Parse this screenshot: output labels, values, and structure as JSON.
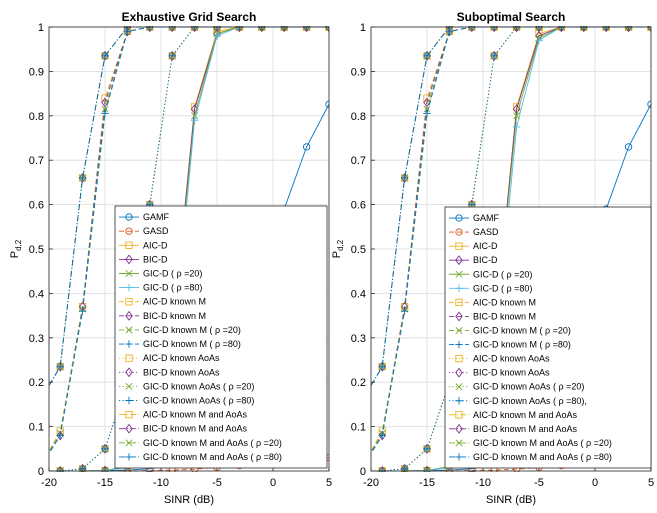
{
  "chart_data": [
    {
      "type": "line",
      "title": "Exhaustive Grid Search",
      "xlabel": "SINR (dB)",
      "ylabel": "P",
      "ylabel_sub": "d,2",
      "xlim": [
        -20,
        5
      ],
      "ylim": [
        0,
        1
      ],
      "xticks": [
        -20,
        -15,
        -10,
        -5,
        0,
        5
      ],
      "yticks": [
        0,
        0.1,
        0.2,
        0.3,
        0.4,
        0.5,
        0.6,
        0.7,
        0.8,
        0.9,
        1
      ],
      "grid": true,
      "legend_position": "inside-lower-right",
      "x": [
        -21,
        -19,
        -17,
        -15,
        -13,
        -11,
        -9,
        -7,
        -5,
        -3,
        -1,
        1,
        3,
        5
      ],
      "series": [
        {
          "name": "GAMF",
          "color": "#0072BD",
          "line": "solid",
          "marker": "o",
          "values": [
            0,
            0,
            0,
            0.001,
            0.002,
            0.005,
            0.015,
            0.05,
            0.14,
            0.3,
            0.48,
            0.59,
            0.73,
            0.826
          ]
        },
        {
          "name": "GASD",
          "color": "#D95319",
          "line": "dashed",
          "marker": "o",
          "values": [
            0,
            0,
            0,
            0,
            0,
            0.001,
            0.002,
            0.004,
            0.008,
            0.012,
            0.016,
            0.018,
            0.022,
            0.03
          ]
        },
        {
          "name": "AIC-D",
          "color": "#EDB120",
          "line": "solid",
          "marker": "s",
          "values": [
            0,
            0,
            0,
            0.001,
            0.01,
            0.06,
            0.3,
            0.82,
            0.99,
            1,
            1,
            1,
            1,
            1
          ]
        },
        {
          "name": "BIC-D",
          "color": "#7E2F8E",
          "line": "solid",
          "marker": "d",
          "values": [
            0,
            0,
            0,
            0.001,
            0.01,
            0.06,
            0.3,
            0.815,
            0.985,
            1,
            1,
            1,
            1,
            1
          ]
        },
        {
          "name": "GIC-D ( ρ =20)",
          "color": "#77AC30",
          "line": "solid",
          "marker": "x",
          "values": [
            0,
            0,
            0,
            0.001,
            0.01,
            0.06,
            0.29,
            0.8,
            0.985,
            1,
            1,
            1,
            1,
            1
          ]
        },
        {
          "name": "GIC-D ( ρ =80)",
          "color": "#4DBEEE",
          "line": "solid",
          "marker": "+",
          "values": [
            0,
            0,
            0,
            0.001,
            0.008,
            0.05,
            0.25,
            0.79,
            0.98,
            1,
            1,
            1,
            1,
            1
          ]
        },
        {
          "name": "AIC-D known M",
          "color": "#EDB120",
          "line": "dashed",
          "marker": "s",
          "values": [
            0,
            0.09,
            0.37,
            0.84,
            0.99,
            1,
            1,
            1,
            1,
            1,
            1,
            1,
            1,
            1
          ]
        },
        {
          "name": "BIC-D known M",
          "color": "#7E2F8E",
          "line": "dashed",
          "marker": "d",
          "values": [
            0,
            0.08,
            0.37,
            0.83,
            0.99,
            1,
            1,
            1,
            1,
            1,
            1,
            1,
            1,
            1
          ]
        },
        {
          "name": "GIC-D known M ( ρ =20)",
          "color": "#77AC30",
          "line": "dashed",
          "marker": "x",
          "values": [
            0,
            0.085,
            0.365,
            0.815,
            0.99,
            1,
            1,
            1,
            1,
            1,
            1,
            1,
            1,
            1
          ]
        },
        {
          "name": "GIC-D known M ( ρ =80)",
          "color": "#0072BD",
          "line": "dashed",
          "marker": "+",
          "values": [
            0,
            0.08,
            0.36,
            0.805,
            0.99,
            1,
            1,
            1,
            1,
            1,
            1,
            1,
            1,
            1
          ]
        },
        {
          "name": "AIC-D known AoAs",
          "color": "#EDB120",
          "line": "dotted",
          "marker": "s",
          "values": [
            0,
            0,
            0.005,
            0.05,
            0.2,
            0.6,
            0.935,
            1,
            1,
            1,
            1,
            1,
            1,
            1
          ]
        },
        {
          "name": "BIC-D known AoAs",
          "color": "#7E2F8E",
          "line": "dotted",
          "marker": "d",
          "values": [
            0,
            0,
            0.005,
            0.05,
            0.2,
            0.6,
            0.935,
            1,
            1,
            1,
            1,
            1,
            1,
            1
          ]
        },
        {
          "name": "GIC-D known AoAs ( ρ =20)",
          "color": "#77AC30",
          "line": "dotted",
          "marker": "x",
          "values": [
            0,
            0,
            0.005,
            0.05,
            0.2,
            0.6,
            0.935,
            1,
            1,
            1,
            1,
            1,
            1,
            1
          ]
        },
        {
          "name": "GIC-D known AoAs ( ρ =80)",
          "color": "#0072BD",
          "line": "dotted",
          "marker": "+",
          "values": [
            0,
            0,
            0.005,
            0.05,
            0.2,
            0.6,
            0.935,
            1,
            1,
            1,
            1,
            1,
            1,
            1
          ]
        },
        {
          "name": "AIC-D known M and AoAs",
          "color": "#EDB120",
          "line": "dashdot",
          "marker": "s",
          "values": [
            0.15,
            0.235,
            0.66,
            0.935,
            1,
            1,
            1,
            1,
            1,
            1,
            1,
            1,
            1,
            1
          ]
        },
        {
          "name": "BIC-D known M and AoAs",
          "color": "#7E2F8E",
          "line": "dashdot",
          "marker": "d",
          "values": [
            0.15,
            0.235,
            0.66,
            0.935,
            1,
            1,
            1,
            1,
            1,
            1,
            1,
            1,
            1,
            1
          ]
        },
        {
          "name": "GIC-D known M and AoAs ( ρ =20)",
          "color": "#77AC30",
          "line": "dashdot",
          "marker": "x",
          "values": [
            0.15,
            0.235,
            0.66,
            0.935,
            1,
            1,
            1,
            1,
            1,
            1,
            1,
            1,
            1,
            1
          ]
        },
        {
          "name": "GIC-D known M and AoAs ( ρ =80)",
          "color": "#0072BD",
          "line": "dashdot",
          "marker": "+",
          "values": [
            0.15,
            0.235,
            0.66,
            0.935,
            1,
            1,
            1,
            1,
            1,
            1,
            1,
            1,
            1,
            1
          ]
        }
      ]
    },
    {
      "type": "line",
      "title": "Suboptimal Search",
      "xlabel": "SINR (dB)",
      "ylabel": "P",
      "ylabel_sub": "d,2",
      "xlim": [
        -20,
        5
      ],
      "ylim": [
        0,
        1
      ],
      "xticks": [
        -20,
        -15,
        -10,
        -5,
        0,
        5
      ],
      "yticks": [
        0,
        0.1,
        0.2,
        0.3,
        0.4,
        0.5,
        0.6,
        0.7,
        0.8,
        0.9,
        1
      ],
      "grid": true,
      "legend_position": "inside-lower-right",
      "x": [
        -21,
        -19,
        -17,
        -15,
        -13,
        -11,
        -9,
        -7,
        -5,
        -3,
        -1,
        1,
        3,
        5
      ],
      "series": [
        {
          "name": "GAMF",
          "color": "#0072BD",
          "line": "solid",
          "marker": "o",
          "values": [
            0,
            0,
            0,
            0.001,
            0.002,
            0.005,
            0.015,
            0.05,
            0.14,
            0.3,
            0.48,
            0.59,
            0.73,
            0.826
          ]
        },
        {
          "name": "GASD",
          "color": "#D95319",
          "line": "dashed",
          "marker": "o",
          "values": [
            0,
            0,
            0,
            0,
            0,
            0.001,
            0.002,
            0.004,
            0.008,
            0.012,
            0.016,
            0.018,
            0.022,
            0.03
          ]
        },
        {
          "name": "AIC-D",
          "color": "#EDB120",
          "line": "solid",
          "marker": "s",
          "values": [
            0,
            0,
            0,
            0.001,
            0.01,
            0.06,
            0.3,
            0.82,
            0.985,
            1,
            1,
            1,
            1,
            1
          ]
        },
        {
          "name": "BIC-D",
          "color": "#7E2F8E",
          "line": "solid",
          "marker": "d",
          "values": [
            0,
            0,
            0,
            0.001,
            0.01,
            0.06,
            0.3,
            0.815,
            0.98,
            1,
            1,
            1,
            1,
            1
          ]
        },
        {
          "name": "GIC-D ( ρ =20)",
          "color": "#77AC30",
          "line": "solid",
          "marker": "x",
          "values": [
            0,
            0,
            0,
            0.001,
            0.01,
            0.06,
            0.29,
            0.8,
            0.975,
            1,
            1,
            1,
            1,
            1
          ]
        },
        {
          "name": "GIC-D ( ρ =80)",
          "color": "#4DBEEE",
          "line": "solid",
          "marker": "+",
          "values": [
            0,
            0,
            0,
            0.001,
            0.008,
            0.05,
            0.25,
            0.775,
            0.97,
            1,
            1,
            1,
            1,
            1
          ]
        },
        {
          "name": "AIC-D known M",
          "color": "#EDB120",
          "line": "dashed",
          "marker": "s",
          "values": [
            0,
            0.09,
            0.37,
            0.84,
            0.99,
            1,
            1,
            1,
            1,
            1,
            1,
            1,
            1,
            1
          ]
        },
        {
          "name": "BIC-D known M",
          "color": "#7E2F8E",
          "line": "dashed",
          "marker": "d",
          "values": [
            0,
            0.08,
            0.37,
            0.83,
            0.99,
            1,
            1,
            1,
            1,
            1,
            1,
            1,
            1,
            1
          ]
        },
        {
          "name": "GIC-D known M ( ρ =20)",
          "color": "#77AC30",
          "line": "dashed",
          "marker": "x",
          "values": [
            0,
            0.085,
            0.365,
            0.815,
            0.99,
            1,
            1,
            1,
            1,
            1,
            1,
            1,
            1,
            1
          ]
        },
        {
          "name": "GIC-D known M ( ρ =80)",
          "color": "#0072BD",
          "line": "dashed",
          "marker": "+",
          "values": [
            0,
            0.08,
            0.36,
            0.805,
            0.99,
            1,
            1,
            1,
            1,
            1,
            1,
            1,
            1,
            1
          ]
        },
        {
          "name": "AIC-D known AoAs",
          "color": "#EDB120",
          "line": "dotted",
          "marker": "s",
          "values": [
            0,
            0,
            0.005,
            0.05,
            0.2,
            0.6,
            0.935,
            1,
            1,
            1,
            1,
            1,
            1,
            1
          ]
        },
        {
          "name": "BIC-D known AoAs",
          "color": "#7E2F8E",
          "line": "dotted",
          "marker": "d",
          "values": [
            0,
            0,
            0.005,
            0.05,
            0.2,
            0.6,
            0.935,
            1,
            1,
            1,
            1,
            1,
            1,
            1
          ]
        },
        {
          "name": "GIC-D known AoAs ( ρ =20)",
          "color": "#77AC30",
          "line": "dotted",
          "marker": "x",
          "values": [
            0,
            0,
            0.005,
            0.05,
            0.2,
            0.6,
            0.935,
            1,
            1,
            1,
            1,
            1,
            1,
            1
          ]
        },
        {
          "name": "GIC-D known AoAs ( ρ =80),",
          "color": "#0072BD",
          "line": "dotted",
          "marker": "+",
          "values": [
            0,
            0,
            0.005,
            0.05,
            0.2,
            0.6,
            0.935,
            1,
            1,
            1,
            1,
            1,
            1,
            1
          ]
        },
        {
          "name": "AIC-D known M and AoAs",
          "color": "#EDB120",
          "line": "dashdot",
          "marker": "s",
          "values": [
            0.15,
            0.235,
            0.66,
            0.935,
            1,
            1,
            1,
            1,
            1,
            1,
            1,
            1,
            1,
            1
          ]
        },
        {
          "name": "BIC-D known M and AoAs",
          "color": "#7E2F8E",
          "line": "dashdot",
          "marker": "d",
          "values": [
            0.15,
            0.235,
            0.66,
            0.935,
            1,
            1,
            1,
            1,
            1,
            1,
            1,
            1,
            1,
            1
          ]
        },
        {
          "name": "GIC-D known M and AoAs ( ρ =20)",
          "color": "#77AC30",
          "line": "dashdot",
          "marker": "x",
          "values": [
            0.15,
            0.235,
            0.66,
            0.935,
            1,
            1,
            1,
            1,
            1,
            1,
            1,
            1,
            1,
            1
          ]
        },
        {
          "name": "GIC-D known M and AoAs ( ρ =80)",
          "color": "#0072BD",
          "line": "dashdot",
          "marker": "+",
          "values": [
            0.15,
            0.235,
            0.66,
            0.935,
            1,
            1,
            1,
            1,
            1,
            1,
            1,
            1,
            1,
            1
          ]
        }
      ]
    }
  ]
}
